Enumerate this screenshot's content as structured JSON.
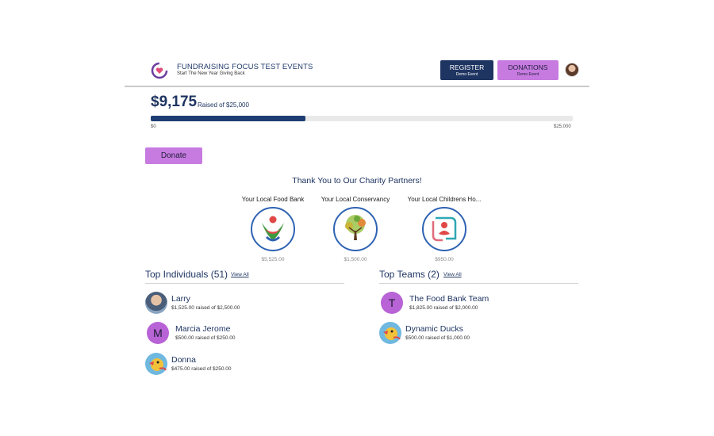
{
  "header": {
    "org_title": "FUNDRAISING FOCUS TEST EVENTS",
    "org_subtitle": "Start The New Year Giving Back",
    "register": {
      "label": "REGISTER",
      "sublabel": "Demo Event"
    },
    "donations": {
      "label": "DONATIONS",
      "sublabel": "Demo Event"
    }
  },
  "progress": {
    "amount_raised": "$9,175",
    "goal_text": "Raised of $25,000",
    "min_label": "$0",
    "max_label": "$25,000",
    "fraction": 0.367
  },
  "donate_button": "Donate",
  "partners": {
    "title": "Thank You to Our Charity Partners!",
    "items": [
      {
        "name": "Your Local Food Bank",
        "amount": "$5,525.00",
        "icon": "food-bank-logo"
      },
      {
        "name": "Your Local Conservancy",
        "amount": "$1,500.00",
        "icon": "tree-logo"
      },
      {
        "name": "Your Local Childrens Ho...",
        "amount": "$950.00",
        "icon": "childrens-hospital-logo"
      }
    ]
  },
  "top_individuals": {
    "title": "Top Individuals (51)",
    "view_all": "View All",
    "items": [
      {
        "name": "Larry",
        "raised": "$1,525.00 raised of $2,500.00",
        "avatar": "photo"
      },
      {
        "name": "Marcia Jerome",
        "raised": "$500.00 raised of $250.00",
        "avatar": "M"
      },
      {
        "name": "Donna",
        "raised": "$475.00 raised of $250.00",
        "avatar": "bird"
      }
    ]
  },
  "top_teams": {
    "title": "Top Teams (2)",
    "view_all": "View All",
    "items": [
      {
        "name": "The Food Bank Team",
        "raised": "$1,825.00 raised of $2,000.00",
        "avatar": "T"
      },
      {
        "name": "Dynamic Ducks",
        "raised": "$500.00 raised of $1,000.00",
        "avatar": "bird"
      }
    ]
  },
  "colors": {
    "navy": "#1e3461",
    "purple": "#c77be0",
    "letter_avatar": "#b863d6"
  }
}
